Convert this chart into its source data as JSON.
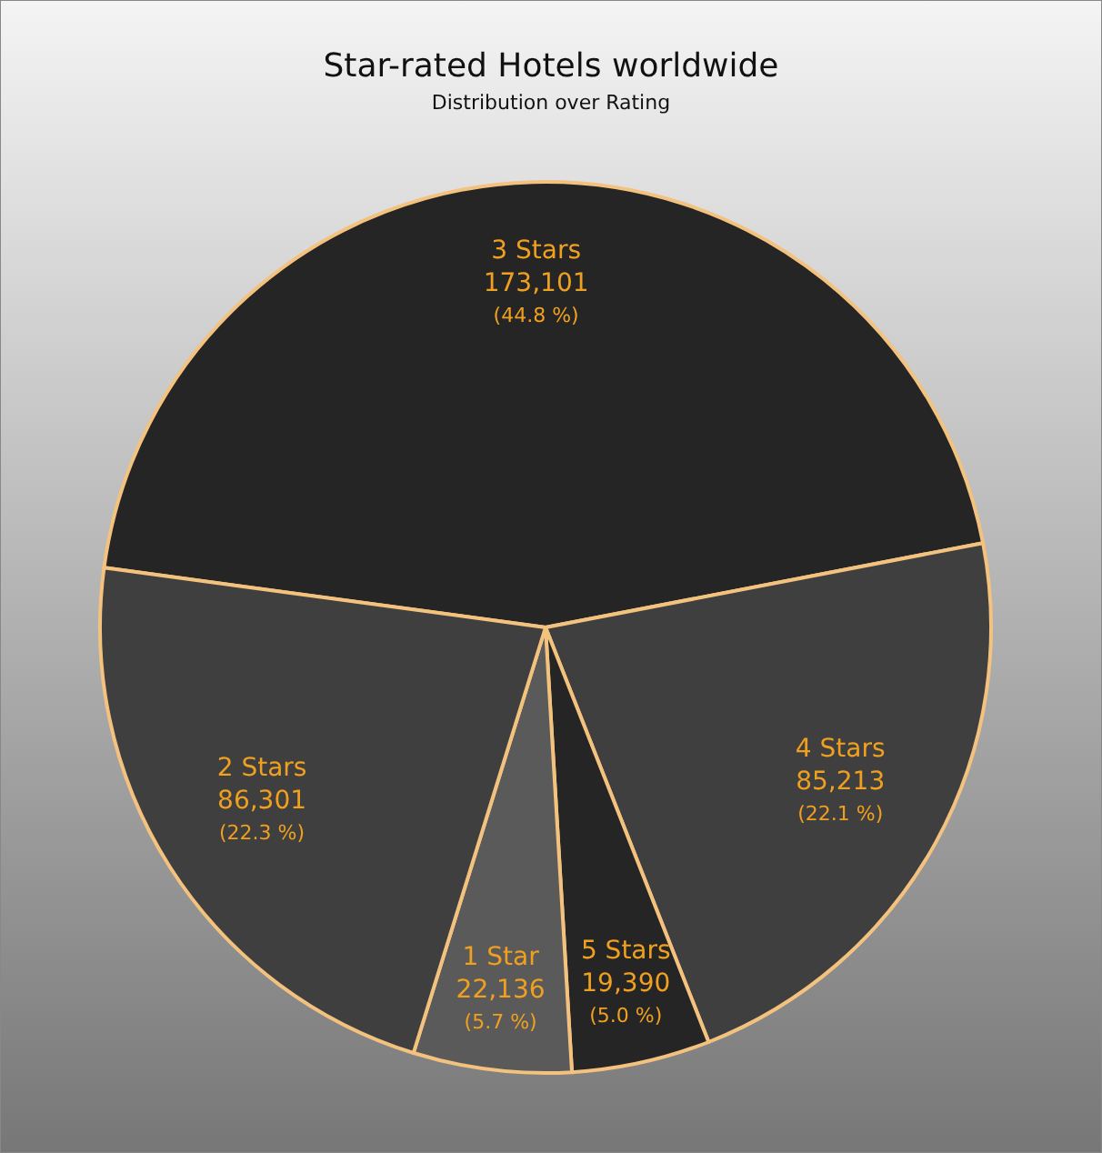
{
  "chart_data": {
    "type": "pie",
    "title": "Star-rated Hotels worldwide",
    "subtitle": "Distribution over Rating",
    "categories": [
      "3 Stars",
      "4 Stars",
      "5 Stars",
      "1 Star",
      "2 Stars"
    ],
    "values": [
      173101,
      85213,
      19390,
      22136,
      86301
    ],
    "value_labels": [
      "173,101",
      "85,213",
      "19,390",
      "22,136",
      "86,301"
    ],
    "colors": [
      "#252525",
      "#3f3f3f",
      "#252525",
      "#5a5a5a",
      "#3f3f3f"
    ],
    "annotations": [
      {
        "text": "(44.8 %)",
        "x": "3 Stars"
      },
      {
        "text": "(22.1 %)",
        "x": "4 Stars"
      },
      {
        "text": "(5.0 %)",
        "x": "5 Stars"
      },
      {
        "text": "(5.7 %)",
        "x": "1 Star"
      },
      {
        "text": "(22.3 %)",
        "x": "2 Stars"
      }
    ]
  }
}
